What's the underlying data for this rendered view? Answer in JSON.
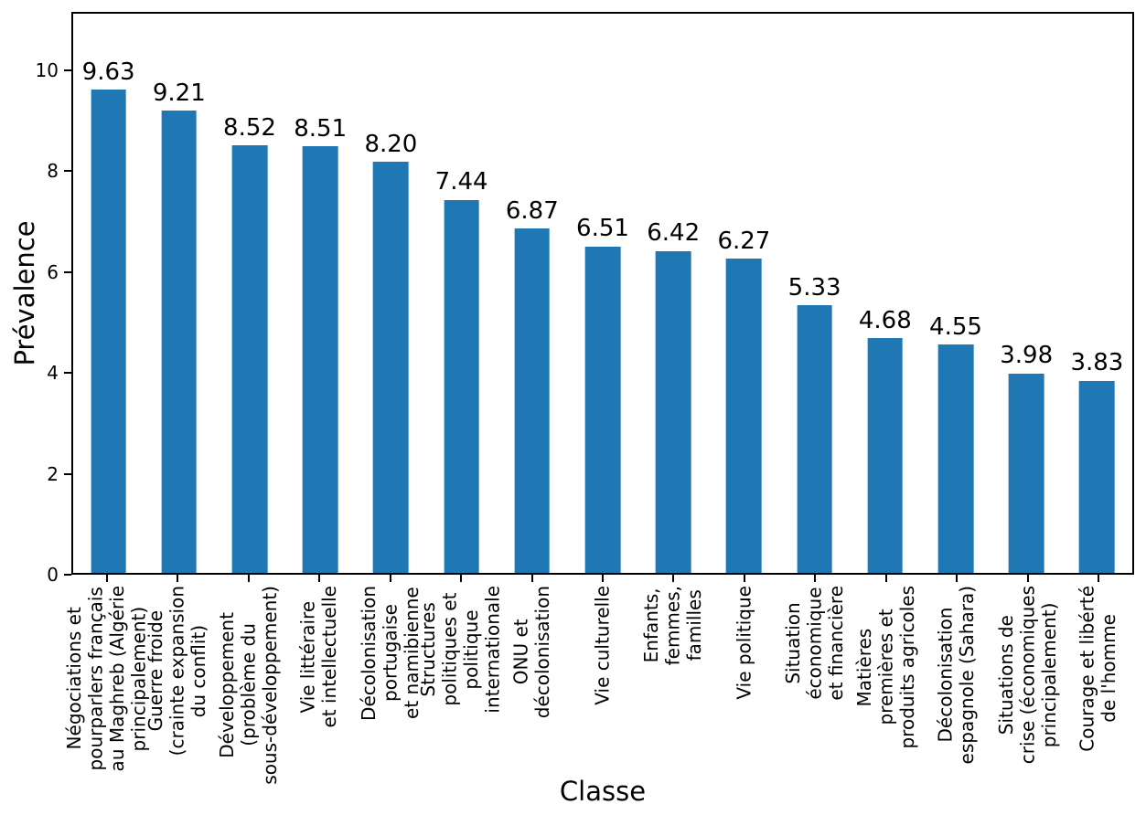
{
  "chart_data": {
    "type": "bar",
    "title": "",
    "xlabel": "Classe",
    "ylabel": "Prévalence",
    "ylim": [
      0,
      11.15
    ],
    "yticks": [
      0,
      2,
      4,
      6,
      8,
      10
    ],
    "grid": false,
    "legend": "none",
    "bar_color": "#1f77b4",
    "categories": [
      "Négociations et\npourparlers français\nau Maghreb (Algérie\nprincipalement)",
      "Guerre froide\n(crainte expansion\ndu conflit)",
      "Développement\n(problème du\nsous-développement)",
      "Vie littéraire\net intellectuelle",
      "Décolonisation\nportugaise\net namibienne",
      "Structures\npolitiques et\npolitique\ninternationale",
      "ONU et\ndécolonisation",
      "Vie culturelle",
      "Enfants,\nfemmes,\nfamilles",
      "Vie politique",
      "Situation\néconomique\net financière",
      "Matières\npremières et\nproduits agricoles",
      "Décolonisation\nespagnole (Sahara)",
      "Situations de\ncrise (économiques\nprincipalement)",
      "Courage et libérté\nde l'homme"
    ],
    "values": [
      9.63,
      9.21,
      8.52,
      8.51,
      8.2,
      7.44,
      6.87,
      6.51,
      6.42,
      6.27,
      5.33,
      4.68,
      4.55,
      3.98,
      3.83
    ],
    "value_labels": [
      "9.63",
      "9.21",
      "8.52",
      "8.51",
      "8.20",
      "7.44",
      "6.87",
      "6.51",
      "6.42",
      "6.27",
      "5.33",
      "4.68",
      "4.55",
      "3.98",
      "3.83"
    ]
  }
}
